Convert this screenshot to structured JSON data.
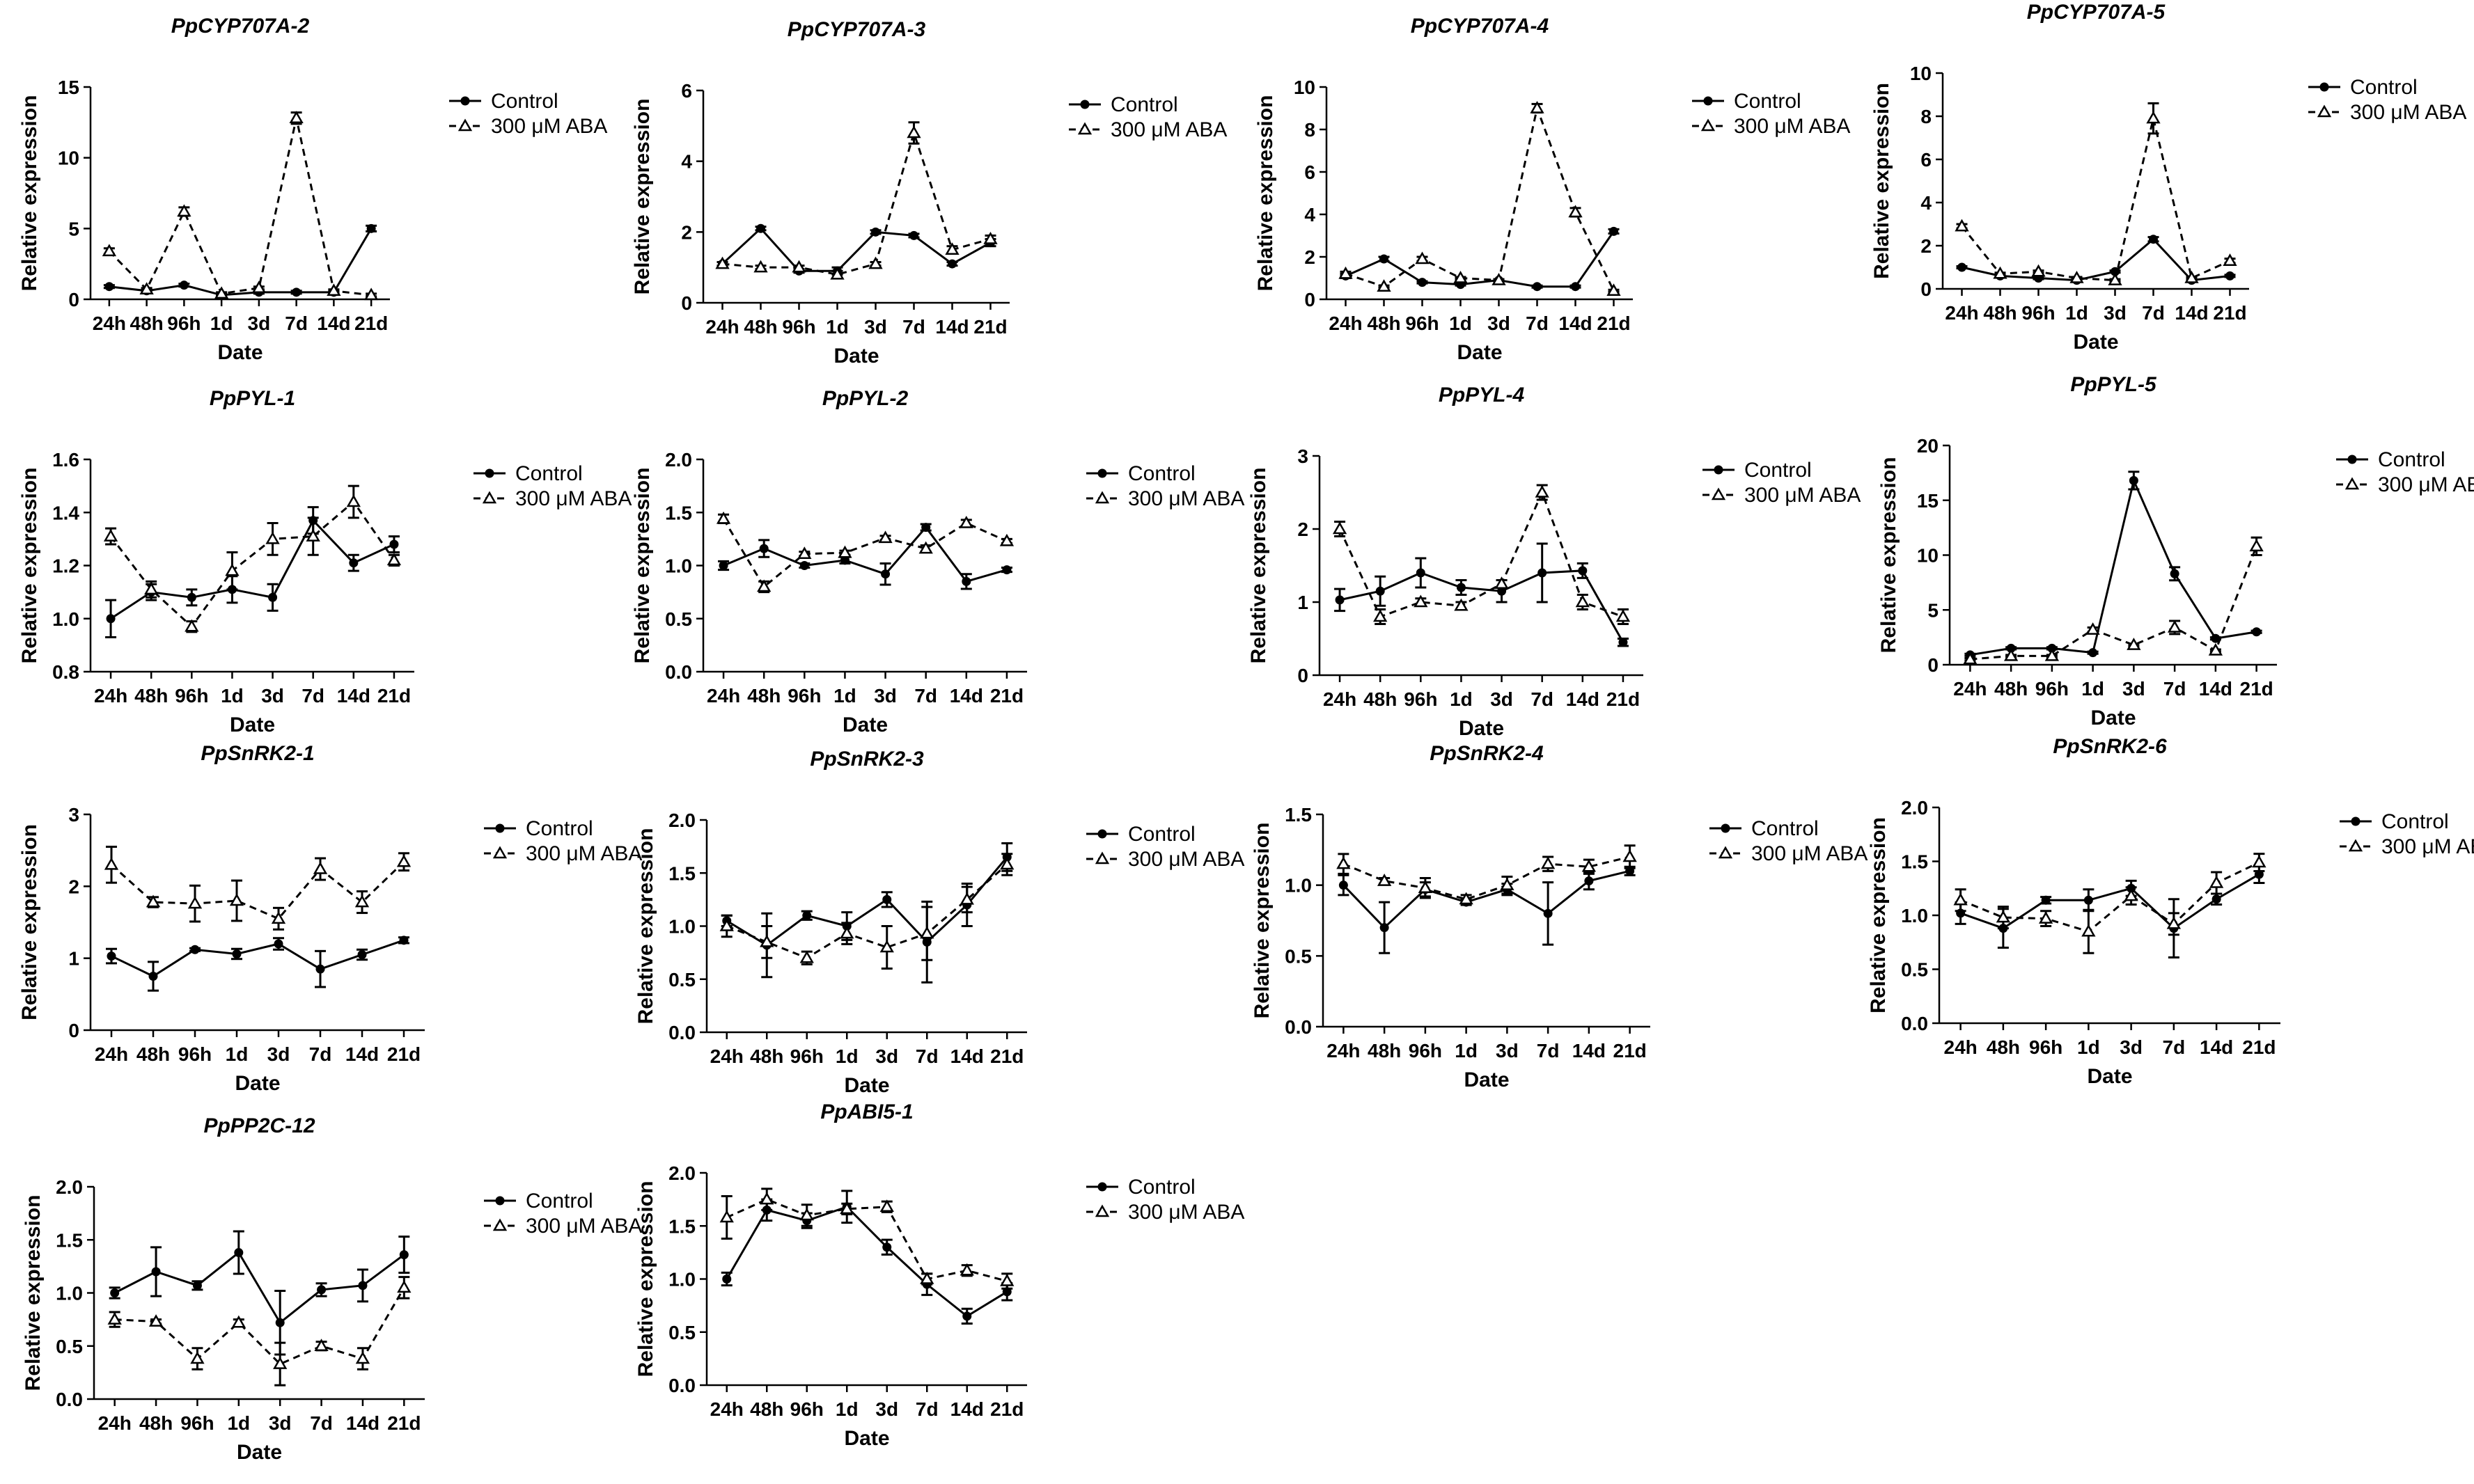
{
  "chart_data": [
    {
      "type": "line",
      "title": "PpCYP707A-2",
      "xlabel": "Date",
      "ylabel": "Relative expression",
      "categories": [
        "24h",
        "48h",
        "96h",
        "1d",
        "3d",
        "7d",
        "14d",
        "21d"
      ],
      "ylim": [
        0,
        15
      ],
      "yticks": [
        0,
        5,
        10,
        15
      ],
      "series": [
        {
          "name": "Control",
          "values": [
            0.9,
            0.6,
            1.0,
            0.3,
            0.5,
            0.5,
            0.5,
            5.0
          ],
          "errors": [
            0.1,
            0.1,
            0.1,
            0.1,
            0.1,
            0.1,
            0.1,
            0.2
          ]
        },
        {
          "name": "300 μM ABA",
          "values": [
            3.4,
            0.7,
            6.2,
            0.4,
            0.8,
            12.8,
            0.6,
            0.3
          ],
          "errors": [
            0.2,
            0.1,
            0.3,
            0.1,
            0.1,
            0.4,
            0.1,
            0.1
          ]
        }
      ]
    },
    {
      "type": "line",
      "title": "PpCYP707A-3",
      "xlabel": "Date",
      "ylabel": "Relative expression",
      "categories": [
        "24h",
        "48h",
        "96h",
        "1d",
        "3d",
        "7d",
        "14d",
        "21d"
      ],
      "ylim": [
        0,
        6
      ],
      "yticks": [
        0,
        2,
        4,
        6
      ],
      "series": [
        {
          "name": "Control",
          "values": [
            1.1,
            2.1,
            0.9,
            0.9,
            2.0,
            1.9,
            1.1,
            1.7
          ],
          "errors": [
            0.05,
            0.05,
            0.05,
            0.1,
            0.05,
            0.05,
            0.05,
            0.1
          ]
        },
        {
          "name": "300 μM ABA",
          "values": [
            1.1,
            1.0,
            1.0,
            0.8,
            1.1,
            4.8,
            1.5,
            1.8
          ],
          "errors": [
            0.05,
            0.05,
            0.05,
            0.1,
            0.05,
            0.3,
            0.1,
            0.1
          ]
        }
      ]
    },
    {
      "type": "line",
      "title": "PpCYP707A-4",
      "xlabel": "Date",
      "ylabel": "Relative expression",
      "categories": [
        "24h",
        "48h",
        "96h",
        "1d",
        "3d",
        "7d",
        "14d",
        "21d"
      ],
      "ylim": [
        0,
        10
      ],
      "yticks": [
        0,
        2,
        4,
        6,
        8,
        10
      ],
      "series": [
        {
          "name": "Control",
          "values": [
            1.1,
            1.9,
            0.8,
            0.7,
            0.9,
            0.6,
            0.6,
            3.2
          ],
          "errors": [
            0.1,
            0.1,
            0.05,
            0.05,
            0.05,
            0.05,
            0.05,
            0.1
          ]
        },
        {
          "name": "300 μM ABA",
          "values": [
            1.2,
            0.6,
            1.9,
            1.0,
            0.9,
            9.0,
            4.1,
            0.4
          ],
          "errors": [
            0.1,
            0.05,
            0.1,
            0.05,
            0.05,
            0.2,
            0.2,
            0.05
          ]
        }
      ]
    },
    {
      "type": "line",
      "title": "PpCYP707A-5",
      "xlabel": "Date",
      "ylabel": "Relative expression",
      "categories": [
        "24h",
        "48h",
        "96h",
        "1d",
        "3d",
        "7d",
        "14d",
        "21d"
      ],
      "ylim": [
        0,
        10
      ],
      "yticks": [
        0,
        2,
        4,
        6,
        8,
        10
      ],
      "series": [
        {
          "name": "Control",
          "values": [
            1.0,
            0.6,
            0.5,
            0.4,
            0.8,
            2.3,
            0.4,
            0.6
          ],
          "errors": [
            0.05,
            0.05,
            0.05,
            0.05,
            0.05,
            0.1,
            0.05,
            0.05
          ]
        },
        {
          "name": "300 μM ABA",
          "values": [
            2.9,
            0.7,
            0.8,
            0.5,
            0.4,
            7.9,
            0.5,
            1.3
          ],
          "errors": [
            0.1,
            0.05,
            0.05,
            0.05,
            0.05,
            0.7,
            0.05,
            0.1
          ]
        }
      ]
    },
    {
      "type": "line",
      "title": "PpPYL-1",
      "xlabel": "Date",
      "ylabel": "Relative expression",
      "categories": [
        "24h",
        "48h",
        "96h",
        "1d",
        "3d",
        "7d",
        "14d",
        "21d"
      ],
      "ylim": [
        0.8,
        1.6
      ],
      "yticks": [
        0.8,
        1.0,
        1.2,
        1.4,
        1.6
      ],
      "series": [
        {
          "name": "Control",
          "values": [
            1.0,
            1.1,
            1.08,
            1.11,
            1.08,
            1.37,
            1.21,
            1.28
          ],
          "errors": [
            0.07,
            0.03,
            0.03,
            0.05,
            0.05,
            0.05,
            0.03,
            0.03
          ]
        },
        {
          "name": "300 μM ABA",
          "values": [
            1.31,
            1.11,
            0.97,
            1.18,
            1.3,
            1.31,
            1.44,
            1.22
          ],
          "errors": [
            0.03,
            0.03,
            0.02,
            0.07,
            0.06,
            0.07,
            0.06,
            0.02
          ]
        }
      ]
    },
    {
      "type": "line",
      "title": "PpPYL-2",
      "xlabel": "Date",
      "ylabel": "Relative expression",
      "categories": [
        "24h",
        "48h",
        "96h",
        "1d",
        "3d",
        "7d",
        "14d",
        "21d"
      ],
      "ylim": [
        0,
        2
      ],
      "yticks": [
        0.0,
        0.5,
        1.0,
        1.5,
        2.0
      ],
      "series": [
        {
          "name": "Control",
          "values": [
            1.0,
            1.16,
            1.0,
            1.05,
            0.92,
            1.36,
            0.85,
            0.96
          ],
          "errors": [
            0.04,
            0.08,
            0.02,
            0.03,
            0.1,
            0.03,
            0.07,
            0.02
          ]
        },
        {
          "name": "300 μM ABA",
          "values": [
            1.44,
            0.8,
            1.11,
            1.12,
            1.26,
            1.16,
            1.4,
            1.23
          ],
          "errors": [
            0.04,
            0.05,
            0.02,
            0.02,
            0.02,
            0.03,
            0.03,
            0.02
          ]
        }
      ]
    },
    {
      "type": "line",
      "title": "PpPYL-4",
      "xlabel": "Date",
      "ylabel": "Relative expression",
      "categories": [
        "24h",
        "48h",
        "96h",
        "1d",
        "3d",
        "7d",
        "14d",
        "21d"
      ],
      "ylim": [
        0,
        3
      ],
      "yticks": [
        0,
        1,
        2,
        3
      ],
      "series": [
        {
          "name": "Control",
          "values": [
            1.03,
            1.15,
            1.4,
            1.2,
            1.15,
            1.4,
            1.43,
            0.45
          ],
          "errors": [
            0.15,
            0.2,
            0.2,
            0.1,
            0.15,
            0.4,
            0.1,
            0.05
          ]
        },
        {
          "name": "300 μM ABA",
          "values": [
            2.0,
            0.8,
            1.0,
            0.95,
            1.25,
            2.5,
            1.0,
            0.8
          ],
          "errors": [
            0.1,
            0.1,
            0.05,
            0.05,
            0.05,
            0.1,
            0.1,
            0.1
          ]
        }
      ]
    },
    {
      "type": "line",
      "title": "PpPYL-5",
      "xlabel": "Date",
      "ylabel": "Relative expression",
      "categories": [
        "24h",
        "48h",
        "96h",
        "1d",
        "3d",
        "7d",
        "14d",
        "21d"
      ],
      "ylim": [
        0,
        20
      ],
      "yticks": [
        0,
        5,
        10,
        15,
        20
      ],
      "series": [
        {
          "name": "Control",
          "values": [
            0.9,
            1.5,
            1.5,
            1.1,
            16.8,
            8.3,
            2.4,
            3.0
          ],
          "errors": [
            0.1,
            0.1,
            0.1,
            0.1,
            0.8,
            0.6,
            0.1,
            0.1
          ]
        },
        {
          "name": "300 μM ABA",
          "values": [
            0.5,
            0.8,
            0.8,
            3.2,
            1.8,
            3.4,
            1.3,
            10.8
          ],
          "errors": [
            0.1,
            0.1,
            0.1,
            0.2,
            0.1,
            0.6,
            0.1,
            0.8
          ]
        }
      ]
    },
    {
      "type": "line",
      "title": "PpSnRK2-1",
      "xlabel": "Date",
      "ylabel": "Relative expression",
      "categories": [
        "24h",
        "48h",
        "96h",
        "1d",
        "3d",
        "7d",
        "14d",
        "21d"
      ],
      "ylim": [
        0,
        3
      ],
      "yticks": [
        0,
        1,
        2,
        3
      ],
      "series": [
        {
          "name": "Control",
          "values": [
            1.03,
            0.75,
            1.12,
            1.06,
            1.2,
            0.85,
            1.05,
            1.25
          ],
          "errors": [
            0.1,
            0.2,
            0.02,
            0.07,
            0.08,
            0.25,
            0.07,
            0.04
          ]
        },
        {
          "name": "300 μM ABA",
          "values": [
            2.3,
            1.78,
            1.76,
            1.8,
            1.55,
            2.24,
            1.78,
            2.34
          ],
          "errors": [
            0.25,
            0.07,
            0.25,
            0.28,
            0.15,
            0.15,
            0.15,
            0.12
          ]
        }
      ]
    },
    {
      "type": "line",
      "title": "PpSnRK2-3",
      "xlabel": "Date",
      "ylabel": "Relative expression",
      "categories": [
        "24h",
        "48h",
        "96h",
        "1d",
        "3d",
        "7d",
        "14d",
        "21d"
      ],
      "ylim": [
        0,
        2
      ],
      "yticks": [
        0.0,
        0.5,
        1.0,
        1.5,
        2.0
      ],
      "series": [
        {
          "name": "Control",
          "values": [
            1.05,
            0.82,
            1.1,
            1.0,
            1.25,
            0.85,
            1.2,
            1.65
          ],
          "errors": [
            0.05,
            0.3,
            0.04,
            0.13,
            0.07,
            0.38,
            0.2,
            0.13
          ]
        },
        {
          "name": "300 μM ABA",
          "values": [
            1.0,
            0.85,
            0.7,
            0.93,
            0.8,
            0.93,
            1.25,
            1.58
          ],
          "errors": [
            0.1,
            0.15,
            0.06,
            0.1,
            0.2,
            0.25,
            0.12,
            0.1
          ]
        }
      ]
    },
    {
      "type": "line",
      "title": "PpSnRK2-4",
      "xlabel": "Date",
      "ylabel": "Relative expression",
      "categories": [
        "24h",
        "48h",
        "96h",
        "1d",
        "3d",
        "7d",
        "14d",
        "21d"
      ],
      "ylim": [
        0,
        1.5
      ],
      "yticks": [
        0.0,
        0.5,
        1.0,
        1.5
      ],
      "series": [
        {
          "name": "Control",
          "values": [
            1.0,
            0.7,
            0.97,
            0.88,
            0.97,
            0.8,
            1.03,
            1.1
          ],
          "errors": [
            0.07,
            0.18,
            0.05,
            0.02,
            0.04,
            0.22,
            0.06,
            0.03
          ]
        },
        {
          "name": "300 μM ABA",
          "values": [
            1.15,
            1.03,
            0.98,
            0.9,
            1.0,
            1.15,
            1.13,
            1.2
          ],
          "errors": [
            0.07,
            0.02,
            0.07,
            0.03,
            0.06,
            0.05,
            0.05,
            0.08
          ]
        }
      ]
    },
    {
      "type": "line",
      "title": "PpSnRK2-6",
      "xlabel": "Date",
      "ylabel": "Relative expression",
      "categories": [
        "24h",
        "48h",
        "96h",
        "1d",
        "3d",
        "7d",
        "14d",
        "21d"
      ],
      "ylim": [
        0,
        2
      ],
      "yticks": [
        0.0,
        0.5,
        1.0,
        1.5,
        2.0
      ],
      "series": [
        {
          "name": "Control",
          "values": [
            1.02,
            0.88,
            1.14,
            1.14,
            1.25,
            0.88,
            1.15,
            1.38
          ],
          "errors": [
            0.1,
            0.18,
            0.03,
            0.1,
            0.07,
            0.27,
            0.05,
            0.08
          ]
        },
        {
          "name": "300 μM ABA",
          "values": [
            1.14,
            0.98,
            0.97,
            0.85,
            1.18,
            0.92,
            1.3,
            1.49
          ],
          "errors": [
            0.1,
            0.1,
            0.07,
            0.2,
            0.08,
            0.1,
            0.1,
            0.08
          ]
        }
      ]
    },
    {
      "type": "line",
      "title": "PpPP2C-12",
      "xlabel": "Date",
      "ylabel": "Relative expression",
      "categories": [
        "24h",
        "48h",
        "96h",
        "1d",
        "3d",
        "7d",
        "14d",
        "21d"
      ],
      "ylim": [
        0,
        2
      ],
      "yticks": [
        0.0,
        0.5,
        1.0,
        1.5,
        2.0
      ],
      "series": [
        {
          "name": "Control",
          "values": [
            1.0,
            1.2,
            1.07,
            1.38,
            0.72,
            1.03,
            1.07,
            1.36
          ],
          "errors": [
            0.05,
            0.23,
            0.04,
            0.2,
            0.3,
            0.06,
            0.15,
            0.17
          ]
        },
        {
          "name": "300 μM ABA",
          "values": [
            0.75,
            0.73,
            0.38,
            0.72,
            0.33,
            0.5,
            0.38,
            1.05
          ],
          "errors": [
            0.07,
            0.02,
            0.1,
            0.03,
            0.2,
            0.04,
            0.1,
            0.1
          ]
        }
      ]
    },
    {
      "type": "line",
      "title": "PpABI5-1",
      "xlabel": "Date",
      "ylabel": "Relative expression",
      "categories": [
        "24h",
        "48h",
        "96h",
        "1d",
        "3d",
        "7d",
        "14d",
        "21d"
      ],
      "ylim": [
        0,
        2
      ],
      "yticks": [
        0.0,
        0.5,
        1.0,
        1.5,
        2.0
      ],
      "series": [
        {
          "name": "Control",
          "values": [
            1.0,
            1.65,
            1.55,
            1.68,
            1.3,
            0.95,
            0.65,
            0.88
          ],
          "errors": [
            0.06,
            0.1,
            0.07,
            0.15,
            0.07,
            0.1,
            0.07,
            0.08
          ]
        },
        {
          "name": "300 μM ABA",
          "values": [
            1.58,
            1.75,
            1.6,
            1.66,
            1.68,
            1.0,
            1.08,
            0.98
          ],
          "errors": [
            0.2,
            0.1,
            0.1,
            0.05,
            0.05,
            0.05,
            0.05,
            0.07
          ]
        }
      ]
    }
  ]
}
